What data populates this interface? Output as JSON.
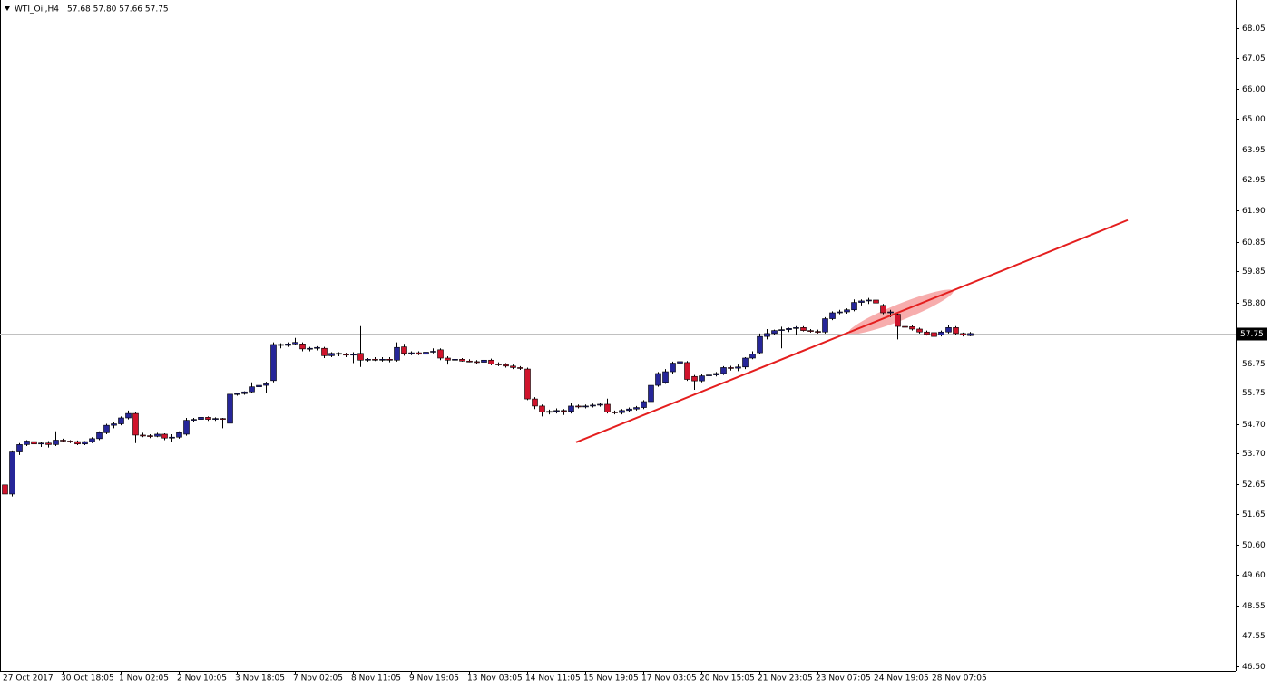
{
  "chart_data": {
    "type": "candlestick",
    "title": "WTI_Oil,H4",
    "quote": "57.68 57.80 57.66 57.75",
    "bull_color": "#262699",
    "bear_color": "#d0142c",
    "categories": [
      "27 Oct 2017",
      null,
      null,
      null,
      null,
      null,
      null,
      null,
      "30 Oct 18:05",
      null,
      null,
      null,
      null,
      null,
      null,
      null,
      "1 Nov 02:05",
      null,
      null,
      null,
      null,
      null,
      null,
      null,
      "2 Nov 10:05",
      null,
      null,
      null,
      null,
      null,
      null,
      null,
      "3 Nov 18:05",
      null,
      null,
      null,
      null,
      null,
      null,
      null,
      "7 Nov 02:05",
      null,
      null,
      null,
      null,
      null,
      null,
      null,
      "8 Nov 11:05",
      null,
      null,
      null,
      null,
      null,
      null,
      null,
      "9 Nov 19:05",
      null,
      null,
      null,
      null,
      null,
      null,
      null,
      "13 Nov 03:05",
      null,
      null,
      null,
      null,
      null,
      null,
      null,
      "14 Nov 11:05",
      null,
      null,
      null,
      null,
      null,
      null,
      null,
      "15 Nov 19:05",
      null,
      null,
      null,
      null,
      null,
      null,
      null,
      "17 Nov 03:05",
      null,
      null,
      null,
      null,
      null,
      null,
      null,
      "20 Nov 15:05",
      null,
      null,
      null,
      null,
      null,
      null,
      null,
      "21 Nov 23:05",
      null,
      null,
      null,
      null,
      null,
      null,
      null,
      "23 Nov 07:05",
      null,
      null,
      null,
      null,
      null,
      null,
      null,
      "24 Nov 19:05",
      null,
      null,
      null,
      null,
      null,
      null,
      null,
      "28 Nov 07:05",
      null,
      null,
      null,
      null,
      null
    ],
    "open": [
      52.64,
      52.33,
      53.75,
      54.0,
      54.1,
      54.02,
      54.05,
      54.0,
      54.15,
      54.12,
      54.1,
      54.02,
      54.1,
      54.2,
      54.4,
      54.65,
      54.7,
      54.9,
      55.05,
      54.32,
      54.3,
      54.28,
      54.35,
      54.22,
      54.25,
      54.35,
      54.82,
      54.85,
      54.92,
      54.85,
      54.88,
      54.72,
      55.7,
      55.72,
      55.78,
      55.95,
      56.0,
      56.16,
      57.38,
      57.35,
      57.4,
      57.4,
      57.23,
      57.25,
      57.25,
      57.0,
      57.08,
      57.05,
      57.02,
      57.08,
      56.85,
      56.88,
      56.85,
      56.88,
      56.85,
      57.3,
      57.08,
      57.1,
      57.05,
      57.12,
      57.2,
      56.92,
      56.85,
      56.88,
      56.82,
      56.8,
      56.78,
      56.85,
      56.72,
      56.7,
      56.65,
      56.6,
      56.55,
      55.54,
      55.3,
      55.1,
      55.12,
      55.15,
      55.12,
      55.3,
      55.28,
      55.3,
      55.33,
      55.36,
      55.1,
      55.08,
      55.15,
      55.2,
      55.25,
      55.45,
      56.0,
      56.1,
      56.46,
      56.75,
      56.77,
      56.3,
      56.15,
      56.32,
      56.35,
      56.4,
      56.6,
      56.58,
      56.62,
      56.92,
      57.1,
      57.65,
      57.75,
      57.85,
      57.88,
      57.92,
      57.95,
      57.85,
      57.82,
      57.8,
      58.25,
      58.45,
      58.48,
      58.55,
      58.8,
      58.85,
      58.88,
      58.7,
      58.45,
      58.4,
      57.99,
      57.98,
      57.9,
      57.8,
      57.78,
      57.7,
      57.8,
      57.95,
      57.75,
      57.68
    ],
    "high": [
      52.7,
      53.8,
      54.05,
      54.15,
      54.15,
      54.1,
      54.12,
      54.45,
      54.2,
      54.15,
      54.14,
      54.12,
      54.25,
      54.45,
      54.7,
      54.75,
      54.95,
      55.15,
      55.1,
      54.4,
      54.35,
      54.4,
      54.38,
      54.35,
      54.45,
      54.9,
      54.9,
      54.95,
      54.95,
      54.92,
      54.9,
      55.75,
      55.75,
      55.8,
      56.1,
      56.05,
      56.12,
      57.45,
      57.42,
      57.45,
      57.6,
      57.45,
      57.3,
      57.32,
      57.3,
      57.12,
      57.12,
      57.1,
      57.12,
      58.0,
      56.92,
      56.95,
      56.95,
      56.95,
      57.45,
      57.4,
      57.15,
      57.15,
      57.2,
      57.25,
      57.25,
      56.98,
      56.92,
      56.92,
      56.88,
      56.85,
      57.12,
      56.9,
      56.78,
      56.75,
      56.7,
      56.65,
      56.6,
      55.6,
      55.35,
      55.18,
      55.22,
      55.2,
      55.4,
      55.35,
      55.35,
      55.38,
      55.42,
      55.55,
      55.15,
      55.2,
      55.25,
      55.3,
      55.5,
      56.05,
      56.45,
      56.55,
      56.8,
      56.85,
      56.82,
      56.35,
      56.38,
      56.4,
      56.45,
      56.65,
      56.66,
      56.7,
      56.95,
      57.15,
      57.75,
      57.9,
      57.88,
      57.98,
      57.95,
      58.0,
      58.0,
      57.9,
      57.88,
      58.3,
      58.5,
      58.55,
      58.6,
      58.9,
      58.9,
      58.95,
      58.92,
      58.75,
      58.55,
      58.45,
      58.05,
      58.02,
      57.95,
      57.85,
      57.85,
      57.85,
      58.02,
      58.0,
      57.78,
      57.8
    ],
    "low": [
      52.25,
      52.25,
      53.65,
      53.95,
      53.95,
      53.92,
      53.9,
      53.95,
      54.08,
      54.05,
      53.98,
      53.98,
      54.05,
      54.15,
      54.35,
      54.55,
      54.65,
      54.85,
      54.05,
      54.25,
      54.22,
      54.25,
      54.15,
      54.1,
      54.2,
      54.3,
      54.75,
      54.8,
      54.8,
      54.8,
      54.55,
      54.65,
      55.65,
      55.68,
      55.75,
      55.85,
      55.75,
      56.1,
      57.25,
      57.3,
      57.35,
      57.15,
      57.15,
      57.18,
      56.92,
      56.95,
      56.98,
      56.95,
      56.75,
      56.62,
      56.8,
      56.82,
      56.8,
      56.78,
      56.8,
      57.0,
      57.02,
      57.02,
      57.0,
      57.08,
      56.85,
      56.7,
      56.8,
      56.8,
      56.78,
      56.72,
      56.4,
      56.68,
      56.65,
      56.6,
      56.55,
      56.52,
      55.5,
      55.2,
      54.95,
      55.02,
      55.05,
      55.0,
      55.05,
      55.22,
      55.22,
      55.25,
      55.28,
      55.05,
      55.02,
      55.02,
      55.1,
      55.15,
      55.2,
      55.4,
      55.95,
      56.05,
      56.4,
      56.68,
      56.15,
      55.85,
      56.1,
      56.25,
      56.3,
      56.35,
      56.5,
      56.48,
      56.55,
      56.88,
      57.05,
      57.55,
      57.7,
      57.25,
      57.8,
      57.7,
      57.82,
      57.78,
      57.75,
      57.75,
      58.2,
      58.4,
      58.42,
      58.5,
      58.7,
      58.75,
      58.72,
      58.4,
      58.3,
      57.55,
      57.9,
      57.85,
      57.75,
      57.68,
      57.55,
      57.65,
      57.75,
      57.7,
      57.65,
      57.66
    ],
    "close": [
      52.33,
      53.75,
      54.0,
      54.12,
      54.02,
      54.05,
      54.0,
      54.15,
      54.12,
      54.1,
      54.02,
      54.1,
      54.2,
      54.4,
      54.65,
      54.7,
      54.9,
      55.05,
      54.32,
      54.3,
      54.28,
      54.35,
      54.22,
      54.25,
      54.4,
      54.82,
      54.85,
      54.92,
      54.85,
      54.88,
      54.85,
      55.7,
      55.72,
      55.78,
      55.95,
      56.0,
      56.05,
      57.38,
      57.35,
      57.4,
      57.45,
      57.23,
      57.25,
      57.28,
      57.0,
      57.08,
      57.05,
      57.02,
      57.05,
      56.85,
      56.88,
      56.85,
      56.88,
      56.85,
      57.28,
      57.08,
      57.1,
      57.05,
      57.12,
      57.15,
      56.92,
      56.85,
      56.88,
      56.82,
      56.8,
      56.78,
      56.85,
      56.72,
      56.7,
      56.65,
      56.6,
      56.58,
      55.54,
      55.3,
      55.1,
      55.12,
      55.15,
      55.12,
      55.3,
      55.28,
      55.3,
      55.33,
      55.36,
      55.1,
      55.08,
      55.15,
      55.2,
      55.25,
      55.45,
      56.0,
      56.4,
      56.46,
      56.75,
      56.8,
      56.2,
      56.15,
      56.32,
      56.35,
      56.4,
      56.6,
      56.58,
      56.62,
      56.92,
      57.05,
      57.65,
      57.75,
      57.85,
      57.88,
      57.92,
      57.95,
      57.85,
      57.82,
      57.8,
      58.25,
      58.45,
      58.48,
      58.55,
      58.8,
      58.85,
      58.88,
      58.78,
      58.45,
      58.48,
      57.99,
      57.98,
      57.9,
      57.8,
      57.72,
      57.65,
      57.8,
      57.95,
      57.75,
      57.7,
      57.75
    ],
    "last_price": 57.75,
    "trendline": {
      "color": "#e41e1e",
      "x": [
        78.75,
        154.75
      ],
      "y": [
        54.08,
        61.58
      ]
    },
    "ylim": [
      46.36,
      69.01
    ],
    "yticks": [
      68.05,
      67.05,
      {
        "value": 66,
        "label": "66.00"
      },
      {
        "value": 65,
        "label": "65.00"
      },
      63.95,
      62.95,
      {
        "value": 61.9,
        "label": "61.90"
      },
      60.85,
      59.85,
      {
        "value": 58.8,
        "label": "58.80"
      },
      56.75,
      55.75,
      {
        "value": 54.7,
        "label": "54.70"
      },
      {
        "value": 53.7,
        "label": "53.70"
      },
      52.65,
      51.65,
      {
        "value": 50.6,
        "label": "50.60"
      },
      {
        "value": 49.6,
        "label": "49.60"
      },
      48.55,
      47.55,
      {
        "value": 46.5,
        "label": "46.50"
      }
    ]
  }
}
